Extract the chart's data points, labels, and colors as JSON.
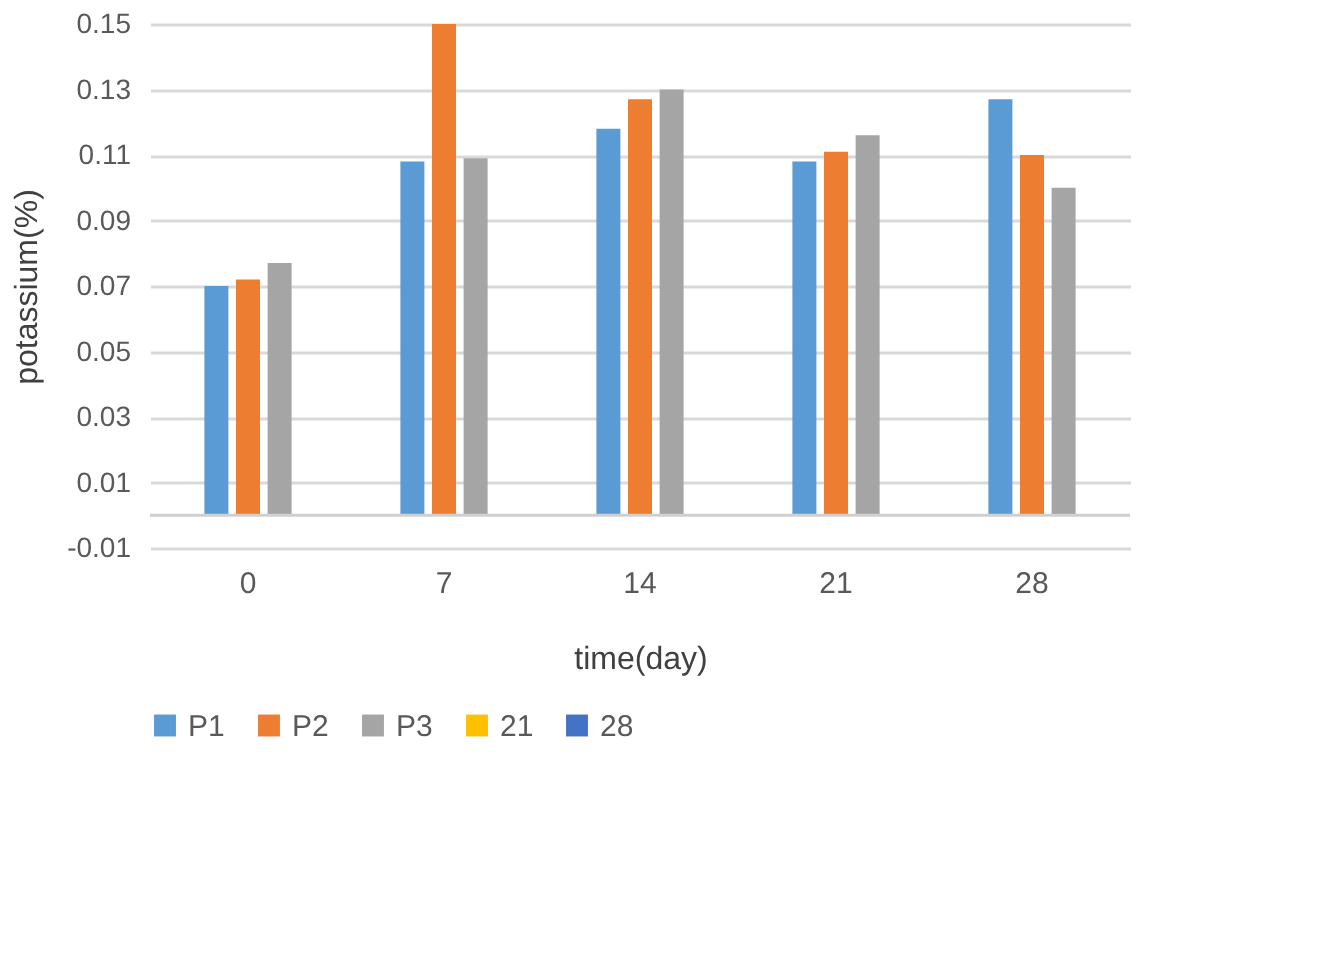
{
  "chart_data": {
    "type": "bar",
    "xlabel": "time(day)",
    "ylabel": "potassium(%)",
    "categories": [
      "0",
      "7",
      "14",
      "21",
      "28"
    ],
    "series": [
      {
        "name": "P1",
        "color": "#5b9bd5",
        "values": [
          0.07,
          0.108,
          0.118,
          0.108,
          0.127
        ]
      },
      {
        "name": "P2",
        "color": "#ed7d31",
        "values": [
          0.072,
          0.15,
          0.127,
          0.111,
          0.11
        ]
      },
      {
        "name": "P3",
        "color": "#a5a5a5",
        "values": [
          0.077,
          0.109,
          0.13,
          0.116,
          0.1
        ]
      },
      {
        "name": "21",
        "color": "#ffc000",
        "values": [
          null,
          null,
          null,
          null,
          null
        ]
      },
      {
        "name": "28",
        "color": "#4472c4",
        "values": [
          null,
          null,
          null,
          null,
          null
        ]
      }
    ],
    "ylim": [
      -0.01,
      0.15
    ],
    "yticks": [
      -0.01,
      0.01,
      0.03,
      0.05,
      0.07,
      0.09,
      0.11,
      0.13,
      0.15
    ],
    "grid": "y",
    "legend": "bottom"
  }
}
